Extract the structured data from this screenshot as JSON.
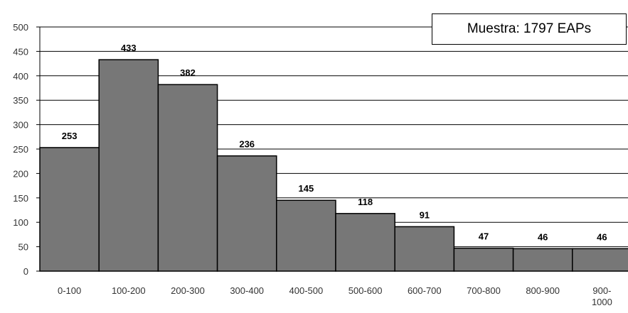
{
  "chart_data": {
    "type": "bar",
    "categories": [
      "0-100",
      "100-200",
      "200-300",
      "300-400",
      "400-500",
      "500-600",
      "600-700",
      "700-800",
      "800-900",
      "900-\n1000"
    ],
    "values": [
      253,
      433,
      382,
      236,
      145,
      118,
      91,
      47,
      46,
      46
    ],
    "data_labels": [
      "253",
      "433",
      "382",
      "236",
      "145",
      "118",
      "91",
      "47",
      "46",
      "46"
    ],
    "y_ticks": [
      0,
      50,
      100,
      150,
      200,
      250,
      300,
      350,
      400,
      450,
      500
    ],
    "ylim": [
      0,
      500
    ],
    "grid": true,
    "bar_color": "#777777",
    "annotation": "Muestra: 1797 EAPs"
  }
}
